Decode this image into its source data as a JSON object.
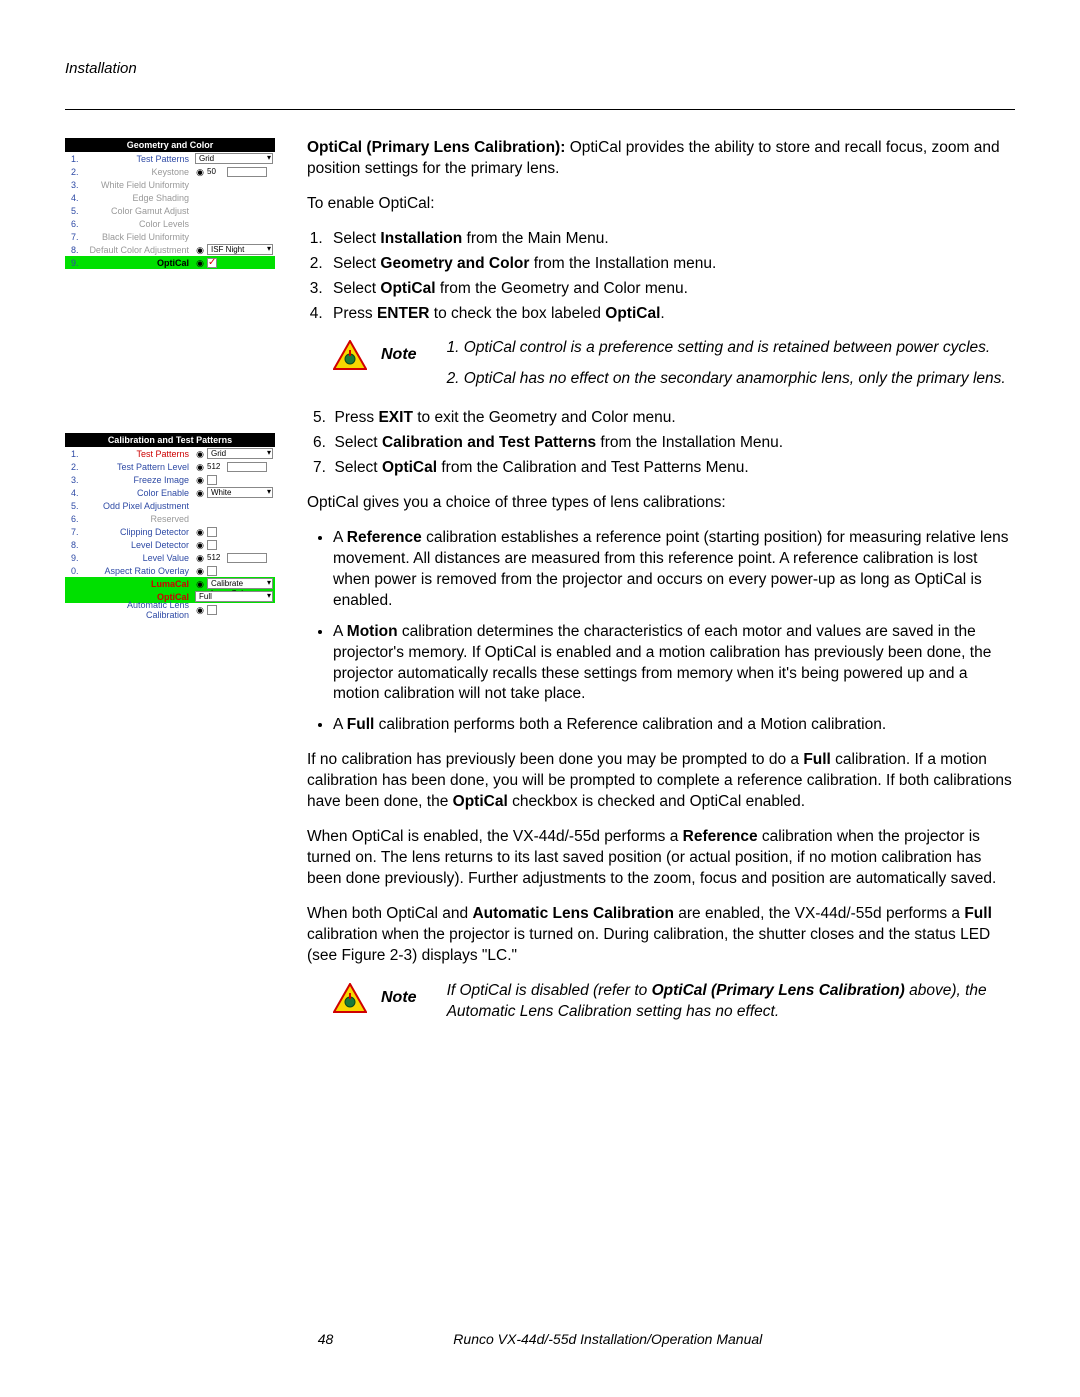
{
  "header": {
    "section": "Installation"
  },
  "intro": {
    "heading_strong": "OptiCal (Primary Lens Calibration):",
    "heading_rest": " OptiCal provides the ability to store and recall focus, zoom and position settings for the primary lens.",
    "enable_line": "To enable OptiCal:"
  },
  "steps_a": [
    {
      "pre": "Select ",
      "strong": "Installation",
      "post": " from the Main Menu."
    },
    {
      "pre": "Select ",
      "strong": "Geometry and Color",
      "post": " from the Installation menu."
    },
    {
      "pre": "Select ",
      "strong": "OptiCal",
      "post": " from the Geometry and Color menu."
    },
    {
      "pre": "Press ",
      "strong": "ENTER",
      "post": " to check the box labeled ",
      "strong2": "OptiCal",
      "post2": "."
    }
  ],
  "note1": {
    "label": "Note",
    "line1": "1. OptiCal control is a preference setting and is retained between power cycles.",
    "line2": "2. OptiCal has no effect on the secondary anamorphic lens, only the primary lens."
  },
  "steps_b": [
    {
      "n": "5.",
      "pre": "Press ",
      "strong": "EXIT",
      "post": " to exit the Geometry and Color menu."
    },
    {
      "n": "6.",
      "pre": "Select ",
      "strong": "Calibration and Test Patterns",
      "post": " from the Installation Menu."
    },
    {
      "n": "7.",
      "pre": "Select ",
      "strong": "OptiCal",
      "post": " from the Calibration and Test Patterns Menu."
    }
  ],
  "choice_line": "OptiCal gives you a choice of three types of lens calibrations:",
  "bullets": [
    {
      "pre": "A ",
      "strong": "Reference",
      "post": " calibration establishes a reference point (starting position) for measuring relative lens movement. All distances are measured from this reference point. A reference calibration is lost when power is removed from the projector and occurs on every power-up as long as OptiCal is enabled."
    },
    {
      "pre": "A ",
      "strong": "Motion",
      "post": " calibration determines the characteristics of each motor and values are saved in the projector's memory. If OptiCal is enabled and a motion calibration has previously been done, the projector automatically recalls these settings from memory when it's being powered up and a motion calibration will not take place."
    },
    {
      "pre": "A ",
      "strong": "Full",
      "post": " calibration performs both a Reference calibration and a Motion calibration."
    }
  ],
  "para1": {
    "a": "If no calibration has previously been done you may be prompted to do a ",
    "s1": "Full",
    "b": " calibration. If a motion calibration has been done, you will be prompted to complete a reference calibration. If both calibrations have been done, the ",
    "s2": "OptiCal",
    "c": " checkbox is checked and OptiCal enabled."
  },
  "para2": {
    "a": "When OptiCal is enabled, the VX-44d/-55d performs a ",
    "s1": "Reference",
    "b": " calibration when the projector is turned on. The lens returns to its last saved position (or actual position, if no motion calibration has been done previously). Further adjustments to the zoom, focus and position are automatically saved."
  },
  "para3": {
    "a": "When both OptiCal and ",
    "s1": "Automatic Lens Calibration",
    "b": " are enabled, the VX-44d/-55d performs a ",
    "s2": "Full",
    "c": " calibration when the projector is turned on. During calibration, the shutter closes and the status LED (see Figure 2-3) displays \"LC.\""
  },
  "note2": {
    "label": "Note",
    "pre": "If OptiCal is disabled (refer to ",
    "strong": "OptiCal (Primary Lens Calibration)",
    "post": " above), the Automatic Lens Calibration setting has no effect."
  },
  "menu1": {
    "title": "Geometry and Color",
    "rows": [
      {
        "n": "1.",
        "label": "Test Patterns",
        "ctrl_type": "dd",
        "val": "Grid",
        "cls": "blue"
      },
      {
        "n": "2.",
        "label": "Keystone",
        "ctrl_type": "globeval",
        "val": "50",
        "cls": "grey"
      },
      {
        "n": "3.",
        "label": "White Field Uniformity",
        "ctrl_type": "",
        "cls": "grey"
      },
      {
        "n": "4.",
        "label": "Edge Shading",
        "ctrl_type": "",
        "cls": "grey"
      },
      {
        "n": "5.",
        "label": "Color Gamut Adjust",
        "ctrl_type": "",
        "cls": "grey"
      },
      {
        "n": "6.",
        "label": "Color Levels",
        "ctrl_type": "",
        "cls": "grey"
      },
      {
        "n": "7.",
        "label": "Black Field Uniformity",
        "ctrl_type": "",
        "cls": "grey"
      },
      {
        "n": "8.",
        "label": "Default Color Adjustment",
        "ctrl_type": "globedd",
        "val": "ISF Night",
        "cls": "grey"
      }
    ],
    "hl": {
      "n": "9.",
      "label": "OptiCal",
      "ctrl_type": "globechk",
      "checked": true
    }
  },
  "menu2": {
    "title": "Calibration and Test Patterns",
    "rows": [
      {
        "n": "1.",
        "label": "Test Patterns",
        "ctrl_type": "globedd",
        "val": "Grid",
        "cls": "redtxt"
      },
      {
        "n": "2.",
        "label": "Test Pattern Level",
        "ctrl_type": "globeval",
        "val": "512",
        "cls": "blue"
      },
      {
        "n": "3.",
        "label": "Freeze Image",
        "ctrl_type": "globechk",
        "cls": "blue"
      },
      {
        "n": "4.",
        "label": "Color Enable",
        "ctrl_type": "globedd",
        "val": "White",
        "cls": "blue"
      },
      {
        "n": "5.",
        "label": "Odd Pixel Adjustment",
        "ctrl_type": "",
        "cls": "blue"
      },
      {
        "n": "6.",
        "label": "Reserved",
        "ctrl_type": "",
        "cls": "grey"
      },
      {
        "n": "7.",
        "label": "Clipping Detector",
        "ctrl_type": "globechk",
        "cls": "blue"
      },
      {
        "n": "8.",
        "label": "Level Detector",
        "ctrl_type": "globechk",
        "cls": "blue"
      },
      {
        "n": "9.",
        "label": "Level Value",
        "ctrl_type": "globeval",
        "val": "512",
        "cls": "blue"
      },
      {
        "n": "0.",
        "label": "Aspect Ratio Overlay",
        "ctrl_type": "globechk",
        "cls": "blue"
      }
    ],
    "hl_rows": [
      {
        "label": "LumaCal",
        "ctrl_type": "globedd",
        "val": "Calibrate LumaCal"
      },
      {
        "label": "OptiCal",
        "ctrl_type": "dd",
        "val": "Full"
      }
    ],
    "last": {
      "label": "Automatic Lens Calibration",
      "ctrl_type": "globechk"
    }
  },
  "footer": {
    "page": "48",
    "manual": "Runco VX-44d/-55d Installation/Operation Manual"
  },
  "colors": {
    "highlight_green": "#00e000",
    "blue_text": "#2e4aa5",
    "grey_text": "#999999",
    "red_text": "#cc0000",
    "note_triangle_border": "#d00000",
    "note_triangle_fill": "#f7d800"
  }
}
